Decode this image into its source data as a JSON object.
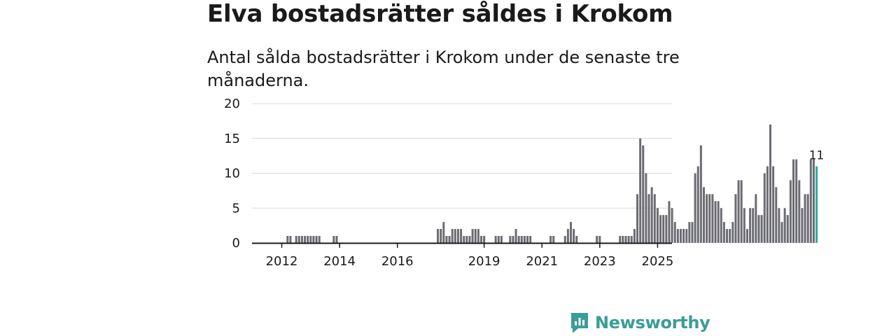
{
  "title": "Elva bostadsrätter såldes i Krokom",
  "subtitle": "Antal sålda bostadsrätter i Krokom under de senaste tre månaderna.",
  "brand": {
    "name": "Newsworthy",
    "icon": "newsworthy-logo-icon"
  },
  "colors": {
    "bar": "#6b6b73",
    "highlight": "#2ea8a3",
    "grid": "#d9d9d9",
    "axis": "#1a1a1a",
    "brand": "#3a9d97"
  },
  "chart_data": {
    "type": "bar",
    "title": "Elva bostadsrätter såldes i Krokom",
    "ylabel": "",
    "xlabel": "",
    "ylim": [
      0,
      20
    ],
    "yticks": [
      0,
      5,
      10,
      15,
      20
    ],
    "grid": true,
    "start_month": "2011-09",
    "xtick_labels": [
      {
        "label": "2012",
        "month_index": 4
      },
      {
        "label": "2014",
        "month_index": 24
      },
      {
        "label": "2016",
        "month_index": 44
      },
      {
        "label": "2019",
        "month_index": 74
      },
      {
        "label": "2021",
        "month_index": 94
      },
      {
        "label": "2023",
        "month_index": 114
      },
      {
        "label": "2025",
        "month_index": 134
      }
    ],
    "values": [
      0,
      0,
      0,
      0,
      0,
      0,
      1,
      1,
      0,
      1,
      1,
      1,
      1,
      1,
      1,
      1,
      1,
      1,
      0,
      0,
      0,
      0,
      1,
      1,
      0,
      0,
      0,
      0,
      0,
      0,
      0,
      0,
      0,
      0,
      0,
      0,
      0,
      0,
      0,
      0,
      0,
      0,
      0,
      0,
      0,
      0,
      0,
      0,
      0,
      0,
      0,
      0,
      0,
      0,
      0,
      0,
      0,
      0,
      2,
      2,
      3,
      1,
      1,
      2,
      2,
      2,
      2,
      1,
      1,
      1,
      2,
      2,
      2,
      1,
      1,
      0,
      0,
      0,
      1,
      1,
      1,
      0,
      0,
      1,
      1,
      2,
      1,
      1,
      1,
      1,
      1,
      0,
      0,
      0,
      0,
      0,
      0,
      1,
      1,
      0,
      0,
      0,
      1,
      2,
      3,
      2,
      1,
      0,
      0,
      0,
      0,
      0,
      0,
      1,
      1,
      0,
      0,
      0,
      0,
      0,
      0,
      1,
      1,
      1,
      1,
      1,
      2,
      7,
      15,
      14,
      10,
      7,
      8,
      7,
      5,
      4,
      4,
      4,
      6,
      5,
      3,
      2,
      2,
      2,
      2,
      3,
      3,
      10,
      11,
      14,
      8,
      7,
      7,
      7,
      6,
      6,
      5,
      3,
      2,
      2,
      3,
      7,
      9,
      9,
      5,
      2,
      5,
      5,
      7,
      4,
      4,
      10,
      11,
      17,
      11,
      8,
      5,
      3,
      5,
      4,
      9,
      12,
      12,
      9,
      5,
      7,
      7,
      12,
      12,
      11
    ],
    "highlight_label": "11",
    "highlight_index": "last"
  }
}
